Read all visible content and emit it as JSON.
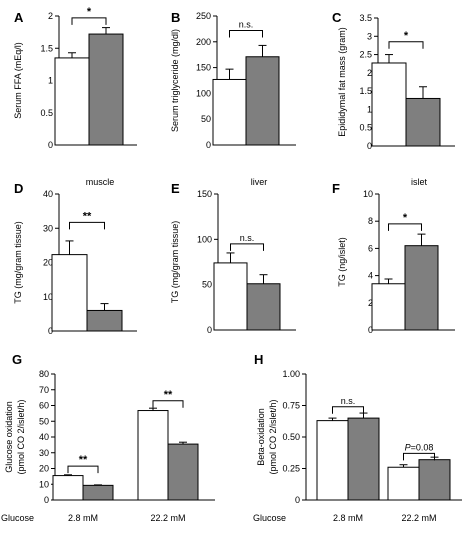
{
  "chart_data": [
    {
      "type": "bar",
      "panel": "A",
      "title": "",
      "ylabel": "Serum FFA (mEq/l)",
      "xlabel": "",
      "ylim": [
        0,
        2
      ],
      "yticks": [
        0,
        0.5,
        1,
        1.5,
        2
      ],
      "yticklabels": [
        "0",
        "0.5",
        "1",
        "1.5",
        "2"
      ],
      "categories": [
        ""
      ],
      "series": [
        {
          "values": [
            1.35
          ],
          "errors": [
            0.08
          ],
          "fill": "#ffffff"
        },
        {
          "values": [
            1.72
          ],
          "errors": [
            0.1
          ],
          "fill": "#7f7f7f"
        }
      ],
      "annotations": [
        {
          "text": "*",
          "group": 0,
          "y": 1.97
        }
      ]
    },
    {
      "type": "bar",
      "panel": "B",
      "title": "",
      "ylabel": "Serum triglyceride (mg/dl)",
      "xlabel": "",
      "ylim": [
        0,
        250
      ],
      "yticks": [
        0,
        50,
        100,
        150,
        200,
        250
      ],
      "yticklabels": [
        "0",
        "50",
        "100",
        "150",
        "200",
        "250"
      ],
      "categories": [
        ""
      ],
      "series": [
        {
          "values": [
            127
          ],
          "errors": [
            20
          ],
          "fill": "#ffffff"
        },
        {
          "values": [
            171
          ],
          "errors": [
            22
          ],
          "fill": "#7f7f7f"
        }
      ],
      "annotations": [
        {
          "text": "n.s.",
          "group": 0,
          "y": 222
        }
      ]
    },
    {
      "type": "bar",
      "panel": "C",
      "title": "",
      "ylabel": "Epididymal fat mass (gram)",
      "xlabel": "",
      "ylim": [
        0,
        3.5
      ],
      "yticks": [
        0,
        0.5,
        1,
        1.5,
        2,
        2.5,
        3,
        3.5
      ],
      "yticklabels": [
        "0",
        "0.5",
        "1",
        "1.5",
        "2",
        "2.5",
        "3",
        "3.5"
      ],
      "categories": [
        ""
      ],
      "series": [
        {
          "values": [
            2.27
          ],
          "errors": [
            0.23
          ],
          "fill": "#ffffff"
        },
        {
          "values": [
            1.3
          ],
          "errors": [
            0.32
          ],
          "fill": "#7f7f7f"
        }
      ],
      "annotations": [
        {
          "text": "*",
          "group": 0,
          "y": 2.85
        }
      ]
    },
    {
      "type": "bar",
      "panel": "D",
      "title": "muscle",
      "ylabel": "TG (mg/gram tissue)",
      "xlabel": "",
      "ylim": [
        0,
        40
      ],
      "yticks": [
        0,
        10,
        20,
        30,
        40
      ],
      "yticklabels": [
        "0",
        "10",
        "20",
        "30",
        "40"
      ],
      "categories": [
        ""
      ],
      "series": [
        {
          "values": [
            22.3
          ],
          "errors": [
            4
          ],
          "fill": "#ffffff"
        },
        {
          "values": [
            6
          ],
          "errors": [
            2
          ],
          "fill": "#7f7f7f"
        }
      ],
      "annotations": [
        {
          "text": "**",
          "group": 0,
          "y": 31.7
        }
      ]
    },
    {
      "type": "bar",
      "panel": "E",
      "title": "liver",
      "ylabel": "TG (mg/gram tissue)",
      "xlabel": "",
      "ylim": [
        0,
        150
      ],
      "yticks": [
        0,
        50,
        100,
        150
      ],
      "yticklabels": [
        "0",
        "50",
        "100",
        "150"
      ],
      "categories": [
        ""
      ],
      "series": [
        {
          "values": [
            74
          ],
          "errors": [
            11
          ],
          "fill": "#ffffff"
        },
        {
          "values": [
            51
          ],
          "errors": [
            10
          ],
          "fill": "#7f7f7f"
        }
      ],
      "annotations": [
        {
          "text": "n.s.",
          "group": 0,
          "y": 95
        }
      ]
    },
    {
      "type": "bar",
      "panel": "F",
      "title": "islet",
      "ylabel": "TG (ng/islet)",
      "xlabel": "",
      "ylim": [
        0,
        10
      ],
      "yticks": [
        0,
        2,
        4,
        6,
        8,
        10
      ],
      "yticklabels": [
        "0",
        "2",
        "4",
        "6",
        "8",
        "10"
      ],
      "categories": [
        ""
      ],
      "series": [
        {
          "values": [
            3.4
          ],
          "errors": [
            0.35
          ],
          "fill": "#ffffff"
        },
        {
          "values": [
            6.2
          ],
          "errors": [
            0.85
          ],
          "fill": "#7f7f7f"
        }
      ],
      "annotations": [
        {
          "text": "*",
          "group": 0,
          "y": 7.8
        }
      ]
    },
    {
      "type": "bar",
      "panel": "G",
      "title": "",
      "ylabel": "Glucose oxidation",
      "ylabel2": "(pmol CO 2/islet/h)",
      "xlabel": "Glucose",
      "ylim": [
        0,
        80
      ],
      "yticks": [
        0,
        10,
        20,
        30,
        40,
        50,
        60,
        70,
        80
      ],
      "yticklabels": [
        "0",
        "10",
        "20",
        "30",
        "40",
        "50",
        "60",
        "70",
        "80"
      ],
      "categories": [
        "2.8 mM",
        "22.2 mM"
      ],
      "series": [
        {
          "values": [
            15.5,
            56.8
          ],
          "errors": [
            0.5,
            1.5
          ],
          "fill": "#ffffff"
        },
        {
          "values": [
            9.3,
            35.5
          ],
          "errors": [
            0.3,
            1.2
          ],
          "fill": "#7f7f7f"
        }
      ],
      "annotations": [
        {
          "text": "**",
          "group": 0,
          "y": 21.5
        },
        {
          "text": "**",
          "group": 1,
          "y": 63
        }
      ]
    },
    {
      "type": "bar",
      "panel": "H",
      "title": "",
      "ylabel": "Beta-oxidation",
      "ylabel2": "(pmol CO 2/islet/h)",
      "xlabel": "Glucose",
      "ylim": [
        0,
        1
      ],
      "yticks": [
        0,
        0.25,
        0.5,
        0.75,
        1
      ],
      "yticklabels": [
        "0",
        "0.25",
        "0.50",
        "0.75",
        "1.00"
      ],
      "categories": [
        "2.8 mM",
        "22.2 mM"
      ],
      "series": [
        {
          "values": [
            0.63,
            0.26
          ],
          "errors": [
            0.02,
            0.02
          ],
          "fill": "#ffffff"
        },
        {
          "values": [
            0.65,
            0.32
          ],
          "errors": [
            0.04,
            0.02
          ],
          "fill": "#7f7f7f"
        }
      ],
      "annotations": [
        {
          "text": "n.s.",
          "group": 0,
          "y": 0.74
        },
        {
          "text": "P=0.08",
          "group": 1,
          "y": 0.37,
          "italic_prefix": "P"
        }
      ]
    }
  ]
}
